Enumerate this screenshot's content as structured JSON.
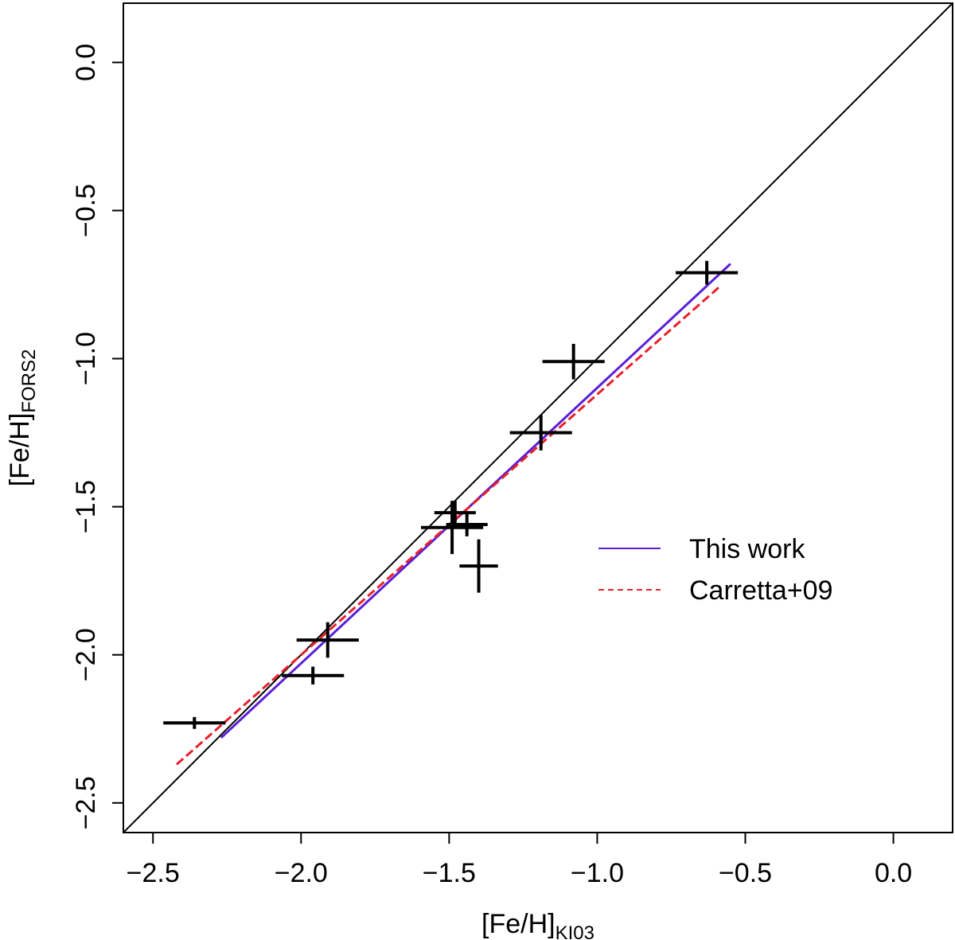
{
  "chart_data": {
    "type": "scatter",
    "title": "",
    "xlabel": {
      "main": "[Fe/H]",
      "sub": "KI03"
    },
    "ylabel": {
      "main": "[Fe/H]",
      "sub": "FORS2"
    },
    "xlim": [
      -2.6,
      0.2
    ],
    "ylim": [
      -2.6,
      0.2
    ],
    "xticks": [
      -2.5,
      -2.0,
      -1.5,
      -1.0,
      -0.5,
      0.0
    ],
    "yticks": [
      -2.5,
      -2.0,
      -1.5,
      -1.0,
      -0.5,
      0.0
    ],
    "xtick_labels": [
      "−2.5",
      "−2.0",
      "−1.5",
      "−1.0",
      "−0.5",
      "0.0"
    ],
    "ytick_labels": [
      "−2.5",
      "−2.0",
      "−1.5",
      "−1.0",
      "−0.5",
      "0.0"
    ],
    "grid": false,
    "points": [
      {
        "x": -2.36,
        "y": -2.23,
        "xerr": 0.105,
        "yerr": 0.02
      },
      {
        "x": -1.96,
        "y": -2.07,
        "xerr": 0.105,
        "yerr": 0.03
      },
      {
        "x": -1.91,
        "y": -1.95,
        "xerr": 0.105,
        "yerr": 0.06
      },
      {
        "x": -1.48,
        "y": -1.52,
        "xerr": 0.07,
        "yerr": 0.04
      },
      {
        "x": -1.44,
        "y": -1.56,
        "xerr": 0.07,
        "yerr": 0.04
      },
      {
        "x": -1.49,
        "y": -1.57,
        "xerr": 0.105,
        "yerr": 0.09
      },
      {
        "x": -1.4,
        "y": -1.7,
        "xerr": 0.065,
        "yerr": 0.09
      },
      {
        "x": -1.19,
        "y": -1.25,
        "xerr": 0.105,
        "yerr": 0.06
      },
      {
        "x": -1.08,
        "y": -1.01,
        "xerr": 0.105,
        "yerr": 0.06
      },
      {
        "x": -0.63,
        "y": -0.71,
        "xerr": 0.105,
        "yerr": 0.04
      }
    ],
    "lines": [
      {
        "name": "identity",
        "x": [
          -2.6,
          0.2
        ],
        "y": [
          -2.6,
          0.2
        ],
        "color": "#000000",
        "style": "solid"
      },
      {
        "name": "This work",
        "x": [
          -2.27,
          -0.55
        ],
        "y": [
          -2.28,
          -0.68
        ],
        "color": "#5b1fd6",
        "style": "solid"
      },
      {
        "name": "Carretta+09",
        "x": [
          -2.42,
          -0.59
        ],
        "y": [
          -2.37,
          -0.76
        ],
        "color": "#e8202a",
        "style": "dashed"
      }
    ],
    "legend": {
      "position": "right",
      "entries": [
        {
          "label": "This work",
          "color": "#5b1fd6",
          "style": "solid"
        },
        {
          "label": "Carretta+09",
          "color": "#e8202a",
          "style": "dashed"
        }
      ]
    }
  }
}
